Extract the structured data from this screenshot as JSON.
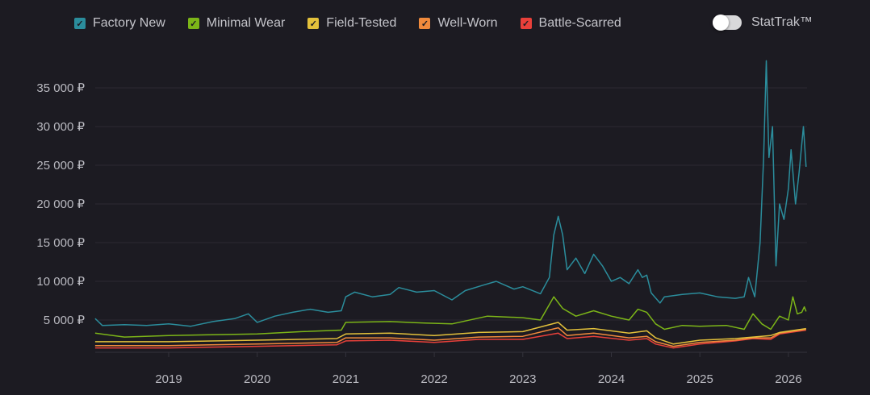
{
  "legend": [
    {
      "label": "Factory New",
      "color": "#2b8d9c",
      "checked": true
    },
    {
      "label": "Minimal Wear",
      "color": "#7cb518",
      "checked": true
    },
    {
      "label": "Field-Tested",
      "color": "#e3c13b",
      "checked": true
    },
    {
      "label": "Well-Worn",
      "color": "#f08a3c",
      "checked": true
    },
    {
      "label": "Battle-Scarred",
      "color": "#e8403a",
      "checked": true
    }
  ],
  "stattrak": {
    "label": "StatTrak™",
    "enabled": false
  },
  "chart_data": {
    "type": "line",
    "xlabel": "",
    "ylabel": "",
    "xlim": [
      2018.17,
      2026.2
    ],
    "ylim": [
      800,
      38500
    ],
    "grid": true,
    "legend_position": "top",
    "y_ticks": [
      {
        "v": 5000,
        "label": "5 000 ₽"
      },
      {
        "v": 10000,
        "label": "10 000 ₽"
      },
      {
        "v": 15000,
        "label": "15 000 ₽"
      },
      {
        "v": 20000,
        "label": "20 000 ₽"
      },
      {
        "v": 25000,
        "label": "25 000 ₽"
      },
      {
        "v": 30000,
        "label": "30 000 ₽"
      },
      {
        "v": 35000,
        "label": "35 000 ₽"
      }
    ],
    "x_ticks": [
      {
        "v": 2019,
        "label": "2019"
      },
      {
        "v": 2020,
        "label": "2020"
      },
      {
        "v": 2021,
        "label": "2021"
      },
      {
        "v": 2022,
        "label": "2022"
      },
      {
        "v": 2023,
        "label": "2023"
      },
      {
        "v": 2024,
        "label": "2024"
      },
      {
        "v": 2025,
        "label": "2025"
      },
      {
        "v": 2026,
        "label": "2026"
      }
    ],
    "series": [
      {
        "name": "Factory New",
        "color": "#2b8d9c",
        "points": [
          [
            2018.17,
            5200
          ],
          [
            2018.25,
            4300
          ],
          [
            2018.5,
            4400
          ],
          [
            2018.75,
            4300
          ],
          [
            2019.0,
            4500
          ],
          [
            2019.25,
            4200
          ],
          [
            2019.5,
            4800
          ],
          [
            2019.75,
            5200
          ],
          [
            2019.9,
            5800
          ],
          [
            2020.0,
            4700
          ],
          [
            2020.2,
            5500
          ],
          [
            2020.4,
            6000
          ],
          [
            2020.6,
            6400
          ],
          [
            2020.8,
            6000
          ],
          [
            2020.95,
            6200
          ],
          [
            2021.0,
            8000
          ],
          [
            2021.1,
            8600
          ],
          [
            2021.3,
            8000
          ],
          [
            2021.5,
            8300
          ],
          [
            2021.6,
            9200
          ],
          [
            2021.8,
            8600
          ],
          [
            2022.0,
            8800
          ],
          [
            2022.2,
            7600
          ],
          [
            2022.35,
            8800
          ],
          [
            2022.55,
            9500
          ],
          [
            2022.7,
            10000
          ],
          [
            2022.9,
            9000
          ],
          [
            2023.0,
            9300
          ],
          [
            2023.2,
            8400
          ],
          [
            2023.3,
            10500
          ],
          [
            2023.35,
            16000
          ],
          [
            2023.4,
            18400
          ],
          [
            2023.45,
            16000
          ],
          [
            2023.5,
            11500
          ],
          [
            2023.6,
            13000
          ],
          [
            2023.7,
            11000
          ],
          [
            2023.8,
            13500
          ],
          [
            2023.9,
            12000
          ],
          [
            2024.0,
            10000
          ],
          [
            2024.1,
            10500
          ],
          [
            2024.2,
            9700
          ],
          [
            2024.3,
            11500
          ],
          [
            2024.35,
            10500
          ],
          [
            2024.4,
            10800
          ],
          [
            2024.45,
            8500
          ],
          [
            2024.55,
            7200
          ],
          [
            2024.6,
            8000
          ],
          [
            2024.8,
            8300
          ],
          [
            2025.0,
            8500
          ],
          [
            2025.2,
            8000
          ],
          [
            2025.4,
            7800
          ],
          [
            2025.5,
            8000
          ],
          [
            2025.55,
            10500
          ],
          [
            2025.62,
            8000
          ],
          [
            2025.68,
            15000
          ],
          [
            2025.72,
            26000
          ],
          [
            2025.75,
            38500
          ],
          [
            2025.78,
            26000
          ],
          [
            2025.82,
            30000
          ],
          [
            2025.86,
            12000
          ],
          [
            2025.9,
            20000
          ],
          [
            2025.95,
            18000
          ],
          [
            2026.0,
            22000
          ],
          [
            2026.03,
            27000
          ],
          [
            2026.08,
            20000
          ],
          [
            2026.12,
            24000
          ],
          [
            2026.17,
            30000
          ],
          [
            2026.2,
            24800
          ]
        ]
      },
      {
        "name": "Minimal Wear",
        "color": "#7cb518",
        "points": [
          [
            2018.17,
            3300
          ],
          [
            2018.5,
            2800
          ],
          [
            2019.0,
            3000
          ],
          [
            2019.5,
            3100
          ],
          [
            2020.0,
            3200
          ],
          [
            2020.5,
            3500
          ],
          [
            2020.95,
            3700
          ],
          [
            2021.0,
            4700
          ],
          [
            2021.5,
            4800
          ],
          [
            2021.9,
            4600
          ],
          [
            2022.2,
            4500
          ],
          [
            2022.6,
            5500
          ],
          [
            2023.0,
            5300
          ],
          [
            2023.2,
            5000
          ],
          [
            2023.35,
            8000
          ],
          [
            2023.45,
            6500
          ],
          [
            2023.6,
            5500
          ],
          [
            2023.8,
            6200
          ],
          [
            2024.0,
            5500
          ],
          [
            2024.2,
            5000
          ],
          [
            2024.3,
            6400
          ],
          [
            2024.4,
            6000
          ],
          [
            2024.5,
            4500
          ],
          [
            2024.6,
            3800
          ],
          [
            2024.8,
            4300
          ],
          [
            2025.0,
            4200
          ],
          [
            2025.3,
            4300
          ],
          [
            2025.5,
            3800
          ],
          [
            2025.6,
            5800
          ],
          [
            2025.7,
            4500
          ],
          [
            2025.8,
            3800
          ],
          [
            2025.9,
            5500
          ],
          [
            2026.0,
            5000
          ],
          [
            2026.05,
            8000
          ],
          [
            2026.1,
            5800
          ],
          [
            2026.15,
            6000
          ],
          [
            2026.18,
            6700
          ],
          [
            2026.2,
            6100
          ]
        ]
      },
      {
        "name": "Field-Tested",
        "color": "#e3c13b",
        "points": [
          [
            2018.17,
            2200
          ],
          [
            2019.0,
            2200
          ],
          [
            2020.0,
            2400
          ],
          [
            2020.9,
            2600
          ],
          [
            2021.0,
            3200
          ],
          [
            2021.5,
            3300
          ],
          [
            2022.0,
            3000
          ],
          [
            2022.5,
            3400
          ],
          [
            2023.0,
            3500
          ],
          [
            2023.4,
            4700
          ],
          [
            2023.5,
            3700
          ],
          [
            2023.8,
            3900
          ],
          [
            2024.2,
            3300
          ],
          [
            2024.4,
            3600
          ],
          [
            2024.5,
            2700
          ],
          [
            2024.7,
            1900
          ],
          [
            2025.0,
            2400
          ],
          [
            2025.4,
            2600
          ],
          [
            2025.6,
            2800
          ],
          [
            2025.8,
            3000
          ],
          [
            2025.9,
            3400
          ],
          [
            2026.2,
            3900
          ]
        ]
      },
      {
        "name": "Well-Worn",
        "color": "#f08a3c",
        "points": [
          [
            2018.17,
            1700
          ],
          [
            2019.0,
            1700
          ],
          [
            2020.0,
            1900
          ],
          [
            2020.9,
            2100
          ],
          [
            2021.0,
            2700
          ],
          [
            2021.5,
            2700
          ],
          [
            2022.0,
            2400
          ],
          [
            2022.5,
            2800
          ],
          [
            2023.0,
            2900
          ],
          [
            2023.4,
            4000
          ],
          [
            2023.5,
            3000
          ],
          [
            2023.8,
            3300
          ],
          [
            2024.2,
            2700
          ],
          [
            2024.4,
            2900
          ],
          [
            2024.5,
            2200
          ],
          [
            2024.7,
            1600
          ],
          [
            2025.0,
            2100
          ],
          [
            2025.4,
            2400
          ],
          [
            2025.6,
            2700
          ],
          [
            2025.8,
            2700
          ],
          [
            2025.9,
            3300
          ],
          [
            2026.2,
            3800
          ]
        ]
      },
      {
        "name": "Battle-Scarred",
        "color": "#e8403a",
        "points": [
          [
            2018.17,
            1400
          ],
          [
            2019.0,
            1400
          ],
          [
            2020.0,
            1600
          ],
          [
            2020.9,
            1800
          ],
          [
            2021.0,
            2300
          ],
          [
            2021.5,
            2400
          ],
          [
            2022.0,
            2100
          ],
          [
            2022.5,
            2500
          ],
          [
            2023.0,
            2500
          ],
          [
            2023.4,
            3300
          ],
          [
            2023.5,
            2600
          ],
          [
            2023.8,
            2900
          ],
          [
            2024.2,
            2400
          ],
          [
            2024.4,
            2600
          ],
          [
            2024.5,
            1900
          ],
          [
            2024.7,
            1400
          ],
          [
            2025.0,
            1900
          ],
          [
            2025.4,
            2300
          ],
          [
            2025.6,
            2600
          ],
          [
            2025.8,
            2500
          ],
          [
            2025.9,
            3200
          ],
          [
            2026.2,
            3700
          ]
        ]
      }
    ]
  }
}
